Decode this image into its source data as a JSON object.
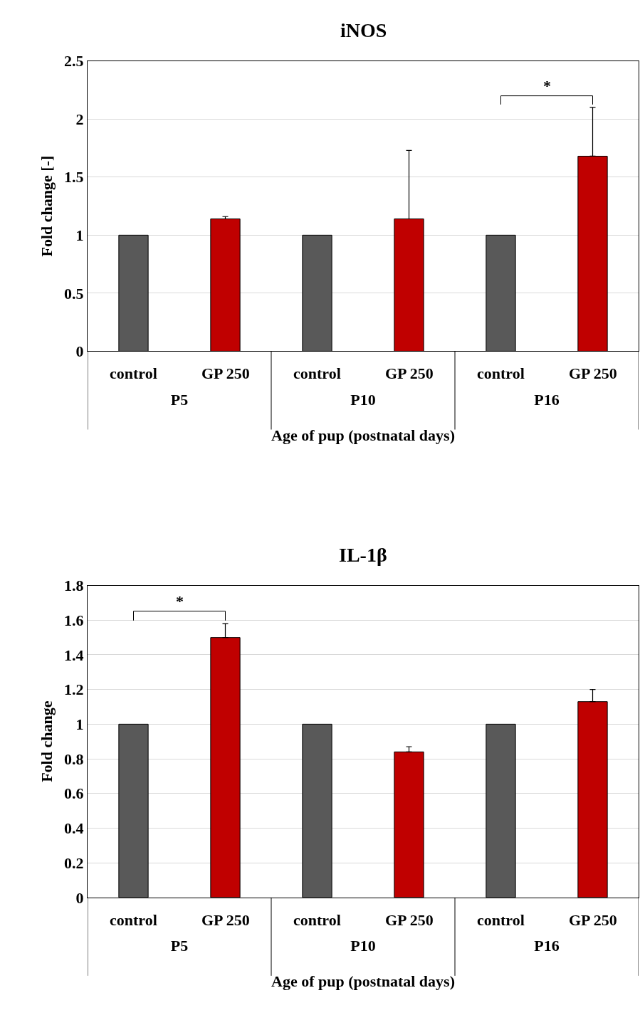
{
  "chart_data": [
    {
      "type": "bar",
      "title": "iNOS",
      "ylabel": "Fold change [-]",
      "xlabel": "Age of pup (postnatal days)",
      "categories": [
        "P5",
        "P10",
        "P16"
      ],
      "series": [
        {
          "name": "control",
          "color": "#595959",
          "values": [
            1,
            1,
            1
          ]
        },
        {
          "name": "GP 250",
          "color": "#c00000",
          "values": [
            1.14,
            1.14,
            1.68
          ],
          "errors": [
            [
              1.14,
              1.16
            ],
            [
              1.14,
              1.73
            ],
            [
              1.68,
              2.1
            ]
          ]
        }
      ],
      "ylim": [
        0,
        2.5
      ],
      "yticks": [
        0,
        0.5,
        1,
        1.5,
        2,
        2.5
      ],
      "grid": "y",
      "annotations": [
        "*"
      ]
    },
    {
      "type": "bar",
      "title": "IL-1β",
      "ylabel": "Fold change",
      "xlabel": "Age of pup (postnatal days)",
      "categories": [
        "P5",
        "P10",
        "P16"
      ],
      "series": [
        {
          "name": "control",
          "color": "#595959",
          "values": [
            1,
            1,
            1
          ]
        },
        {
          "name": "GP 250",
          "color": "#c00000",
          "values": [
            1.5,
            0.84,
            1.13
          ],
          "errors": [
            [
              1.5,
              1.58
            ],
            [
              0.84,
              0.87
            ],
            [
              1.13,
              1.2
            ]
          ]
        }
      ],
      "ylim": [
        0,
        1.8
      ],
      "yticks": [
        0,
        0.2,
        0.4,
        0.6,
        0.8,
        1,
        1.2,
        1.4,
        1.6,
        1.8
      ],
      "grid": "y",
      "annotations": [
        "*"
      ]
    }
  ]
}
